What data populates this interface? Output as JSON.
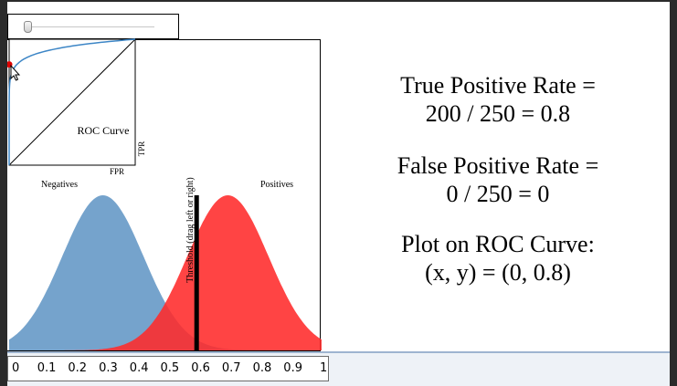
{
  "slider": {
    "threshold": 0.6
  },
  "roc": {
    "title": "ROC Curve",
    "x_label": "FPR",
    "y_label": "TPR",
    "point": {
      "fpr": 0,
      "tpr": 0.8
    }
  },
  "distributions": {
    "negatives_label": "Negatives",
    "positives_label": "Positives",
    "negatives_mean": 0.3,
    "positives_mean": 0.7,
    "std": 0.13,
    "negatives_color": "#6e9ec9",
    "positives_color": "#ff2a2a",
    "threshold_label": "Threshold (drag left or right)"
  },
  "stats": {
    "tpr_heading": "True Positive Rate =",
    "tpr_formula": "200 / 250 = 0.8",
    "fpr_heading": "False Positive Rate =",
    "fpr_formula": "0 / 250 = 0",
    "plot_heading": "Plot on ROC Curve:",
    "plot_point": "(x, y) = (0, 0.8)"
  },
  "axis": {
    "ticks": [
      "0",
      "0.1",
      "0.2",
      "0.3",
      "0.4",
      "0.5",
      "0.6",
      "0.7",
      "0.8",
      "0.9",
      "1"
    ]
  }
}
